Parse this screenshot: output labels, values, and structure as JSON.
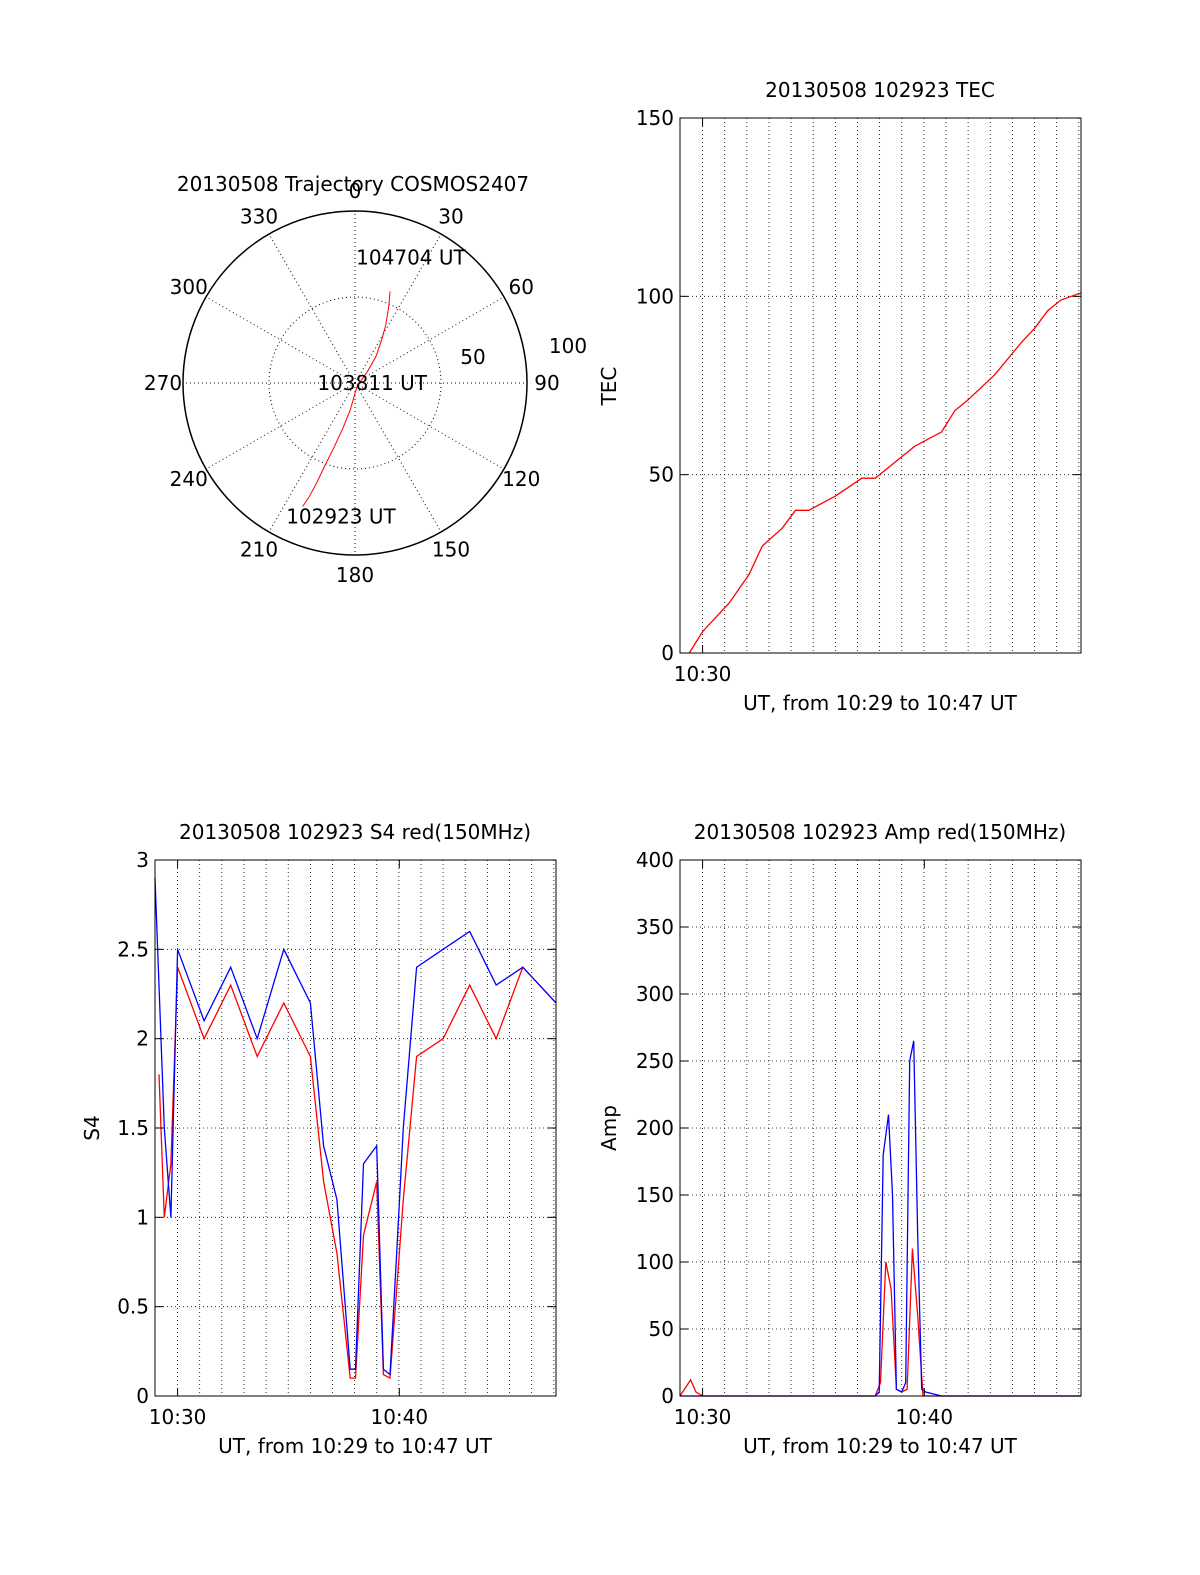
{
  "colors": {
    "red": "#ff0000",
    "blue": "#0000ff",
    "axis": "#000000",
    "grid": "#000000"
  },
  "chart_data": [
    {
      "id": "trajectory",
      "type": "polar",
      "title": "20130508 Trajectory COSMOS2407",
      "azimuth_labels": [
        "0",
        "30",
        "60",
        "90",
        "120",
        "150",
        "180",
        "210",
        "240",
        "270",
        "300",
        "330"
      ],
      "elevation_ring_labels": [
        "50",
        "100"
      ],
      "elevation_rings": [
        50,
        100
      ],
      "rmax": 100,
      "grid": true,
      "series": [
        {
          "color": "#ff0000",
          "points": [
            [
              21,
              57
            ],
            [
              24,
              48
            ],
            [
              28,
              38
            ],
            [
              32,
              29
            ],
            [
              38,
              20
            ],
            [
              47,
              10
            ],
            [
              60,
              5
            ],
            [
              135,
              2
            ],
            [
              180,
              6
            ],
            [
              190,
              16
            ],
            [
              195,
              27
            ],
            [
              198,
              39
            ],
            [
              200,
              51
            ],
            [
              201,
              62
            ],
            [
              202,
              72
            ],
            [
              203,
              78
            ]
          ]
        }
      ],
      "annotations": [
        {
          "text": "104704 UT",
          "az": 24,
          "r": 80
        },
        {
          "text": "103811 UT",
          "az": 90,
          "r": 10
        },
        {
          "text": "102923 UT",
          "az": 186,
          "r": 78
        }
      ]
    },
    {
      "id": "tec",
      "type": "line",
      "title": "20130508 102923 TEC",
      "xlabel": "UT, from 10:29 to 10:47 UT",
      "ylabel": "TEC",
      "xlim": [
        10.483,
        10.785
      ],
      "ylim": [
        0,
        150
      ],
      "yticks": [
        {
          "v": 0,
          "label": "0"
        },
        {
          "v": 50,
          "label": "50"
        },
        {
          "v": 100,
          "label": "100"
        },
        {
          "v": 150,
          "label": "150"
        }
      ],
      "xticks": [
        {
          "v": 10.5,
          "label": "10:30"
        }
      ],
      "grid": true,
      "series": [
        {
          "color": "#ff0000",
          "x": [
            10.49,
            10.5,
            10.52,
            10.535,
            10.545,
            10.56,
            10.57,
            10.58,
            10.6,
            10.62,
            10.63,
            10.65,
            10.66,
            10.68,
            10.69,
            10.7,
            10.72,
            10.74,
            10.75,
            10.76,
            10.77,
            10.785
          ],
          "y": [
            0,
            6,
            14,
            22,
            30,
            35,
            40,
            40,
            44,
            49,
            49,
            55,
            58,
            62,
            68,
            71,
            78,
            87,
            91,
            96,
            99,
            101
          ]
        }
      ]
    },
    {
      "id": "s4",
      "type": "line",
      "title": "20130508 102923 S4 red(150MHz)",
      "xlabel": "UT, from 10:29 to 10:47 UT",
      "ylabel": "S4",
      "xlim": [
        10.483,
        10.785
      ],
      "ylim": [
        0,
        3
      ],
      "yticks": [
        {
          "v": 0,
          "label": "0"
        },
        {
          "v": 0.5,
          "label": "0.5"
        },
        {
          "v": 1,
          "label": "1"
        },
        {
          "v": 1.5,
          "label": "1.5"
        },
        {
          "v": 2,
          "label": "2"
        },
        {
          "v": 2.5,
          "label": "2.5"
        },
        {
          "v": 3,
          "label": "3"
        }
      ],
      "xticks": [
        {
          "v": 10.5,
          "label": "10:30"
        },
        {
          "v": 10.667,
          "label": "10:40"
        }
      ],
      "grid": true,
      "series": [
        {
          "color": "#ff0000",
          "x": [
            10.486,
            10.49,
            10.495,
            10.5,
            10.52,
            10.54,
            10.56,
            10.58,
            10.6,
            10.61,
            10.62,
            10.63,
            10.634,
            10.64,
            10.65,
            10.655,
            10.66,
            10.665,
            10.67,
            10.68,
            10.7,
            10.72,
            10.74,
            10.76,
            10.785
          ],
          "y": [
            1.8,
            1.0,
            1.3,
            2.4,
            2.0,
            2.3,
            1.9,
            2.2,
            1.9,
            1.2,
            0.8,
            0.1,
            0.1,
            0.9,
            1.2,
            0.12,
            0.1,
            0.6,
            1.1,
            1.9,
            2.0,
            2.3,
            2.0,
            2.4,
            2.2
          ]
        },
        {
          "color": "#0000ff",
          "x": [
            10.483,
            10.49,
            10.495,
            10.5,
            10.52,
            10.54,
            10.56,
            10.58,
            10.6,
            10.61,
            10.62,
            10.63,
            10.634,
            10.64,
            10.65,
            10.655,
            10.66,
            10.665,
            10.67,
            10.68,
            10.7,
            10.72,
            10.74,
            10.76,
            10.785
          ],
          "y": [
            2.9,
            1.5,
            1.0,
            2.5,
            2.1,
            2.4,
            2.0,
            2.5,
            2.2,
            1.4,
            1.1,
            0.15,
            0.15,
            1.3,
            1.4,
            0.15,
            0.12,
            0.8,
            1.5,
            2.4,
            2.5,
            2.6,
            2.3,
            2.4,
            2.2
          ]
        }
      ]
    },
    {
      "id": "amp",
      "type": "line",
      "title": "20130508 102923 Amp red(150MHz)",
      "xlabel": "UT, from 10:29 to 10:47 UT",
      "ylabel": "Amp",
      "xlim": [
        10.483,
        10.785
      ],
      "ylim": [
        0,
        400
      ],
      "yticks": [
        {
          "v": 0,
          "label": "0"
        },
        {
          "v": 50,
          "label": "50"
        },
        {
          "v": 100,
          "label": "100"
        },
        {
          "v": 150,
          "label": "150"
        },
        {
          "v": 200,
          "label": "200"
        },
        {
          "v": 250,
          "label": "250"
        },
        {
          "v": 300,
          "label": "300"
        },
        {
          "v": 350,
          "label": "350"
        },
        {
          "v": 400,
          "label": "400"
        }
      ],
      "xticks": [
        {
          "v": 10.5,
          "label": "10:30"
        },
        {
          "v": 10.667,
          "label": "10:40"
        }
      ],
      "grid": true,
      "series": [
        {
          "color": "#ff0000",
          "x": [
            10.483,
            10.491,
            10.495,
            10.5,
            10.63,
            10.634,
            10.638,
            10.642,
            10.646,
            10.65,
            10.654,
            10.658,
            10.662,
            10.666,
            10.68,
            10.785
          ],
          "y": [
            0,
            12,
            3,
            0,
            0,
            10,
            100,
            80,
            5,
            3,
            5,
            110,
            60,
            0,
            0,
            0
          ]
        },
        {
          "color": "#0000ff",
          "x": [
            10.483,
            10.63,
            10.633,
            10.636,
            10.64,
            10.643,
            10.646,
            10.65,
            10.653,
            10.656,
            10.659,
            10.662,
            10.665,
            10.668,
            10.68,
            10.785
          ],
          "y": [
            0,
            0,
            3,
            180,
            210,
            150,
            5,
            3,
            10,
            250,
            265,
            120,
            5,
            3,
            0,
            0
          ]
        }
      ]
    }
  ]
}
